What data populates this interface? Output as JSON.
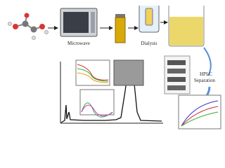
{
  "steps": [
    {
      "label": "Microwave"
    },
    {
      "label": "Dialysis"
    },
    {
      "label_lines": [
        "HPLC",
        "Separation"
      ]
    }
  ]
}
